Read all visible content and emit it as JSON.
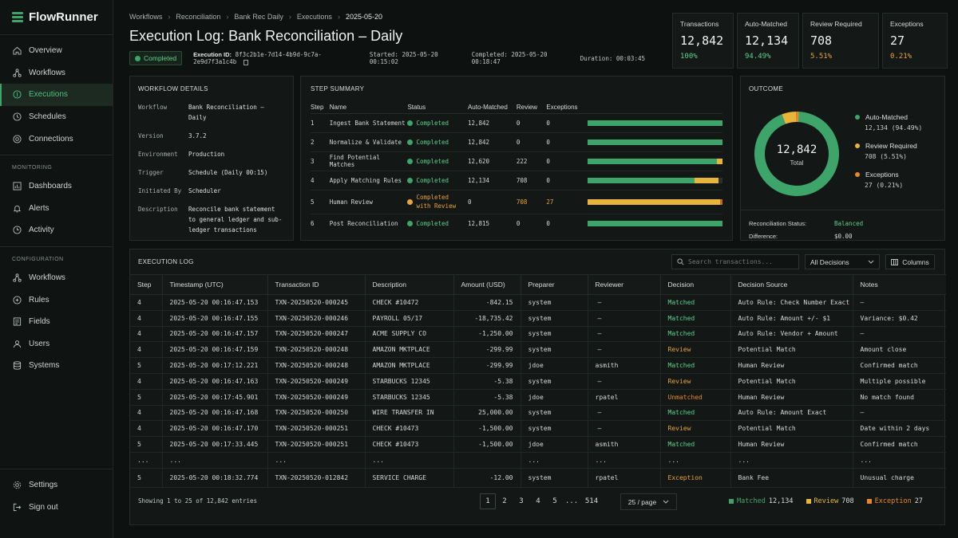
{
  "app": {
    "name": "FlowRunner"
  },
  "nav": {
    "main": [
      {
        "label": "Overview",
        "icon": "home-icon"
      },
      {
        "label": "Workflows",
        "icon": "workflow-icon"
      },
      {
        "label": "Executions",
        "icon": "executions-icon",
        "active": true
      },
      {
        "label": "Schedules",
        "icon": "clock-icon"
      },
      {
        "label": "Connections",
        "icon": "connection-icon"
      }
    ],
    "monitoring_label": "MONITORING",
    "monitoring": [
      {
        "label": "Dashboards",
        "icon": "chart-icon"
      },
      {
        "label": "Alerts",
        "icon": "bell-icon"
      },
      {
        "label": "Activity",
        "icon": "activity-icon"
      }
    ],
    "configuration_label": "CONFIGURATION",
    "configuration": [
      {
        "label": "Workflows",
        "icon": "workflow-icon"
      },
      {
        "label": "Rules",
        "icon": "rules-icon"
      },
      {
        "label": "Fields",
        "icon": "fields-icon"
      },
      {
        "label": "Users",
        "icon": "users-icon"
      },
      {
        "label": "Systems",
        "icon": "database-icon"
      }
    ],
    "bottom": [
      {
        "label": "Settings",
        "icon": "gear-icon"
      },
      {
        "label": "Sign out",
        "icon": "sign-out-icon"
      }
    ]
  },
  "breadcrumb": [
    "Workflows",
    "Reconciliation",
    "Bank Rec Daily",
    "Executions",
    "2025-05-20"
  ],
  "page": {
    "title": "Execution Log: Bank Reconciliation – Daily",
    "status": "Completed",
    "execution_id_label": "Execution ID:",
    "execution_id": "8f3c2b1e-7d14-4b9d-9c7a-2e9d7f3a1c4b",
    "started_label": "Started:",
    "started": "2025-05-20 00:15:02",
    "completed_label": "Completed:",
    "completed": "2025-05-20 00:18:47",
    "duration_label": "Duration:",
    "duration": "00:03:45"
  },
  "stats": [
    {
      "label": "Transactions",
      "value": "12,842",
      "pct": "100%",
      "color": "#5fd08e"
    },
    {
      "label": "Auto-Matched",
      "value": "12,134",
      "pct": "94.49%",
      "color": "#5fd08e"
    },
    {
      "label": "Review Required",
      "value": "708",
      "pct": "5.51%",
      "color": "#e8a33a"
    },
    {
      "label": "Exceptions",
      "value": "27",
      "pct": "0.21%",
      "color": "#e8a33a"
    }
  ],
  "workflow_details": {
    "title": "WORKFLOW DETAILS",
    "rows": [
      {
        "k": "Workflow",
        "v": "Bank Reconciliation – Daily"
      },
      {
        "k": "Version",
        "v": "3.7.2"
      },
      {
        "k": "Environment",
        "v": "Production"
      },
      {
        "k": "Trigger",
        "v": "Schedule (Daily 00:15)"
      },
      {
        "k": "Initiated By",
        "v": "Scheduler"
      },
      {
        "k": "Description",
        "v": "Reconcile bank statement to general ledger and sub-ledger transactions"
      }
    ]
  },
  "step_summary": {
    "title": "STEP SUMMARY",
    "headers": [
      "Step",
      "Name",
      "Status",
      "Auto-Matched",
      "Review",
      "Exceptions"
    ],
    "rows": [
      {
        "step": "1",
        "name": "Ingest Bank Statement",
        "status": "Completed",
        "warn": false,
        "auto": "12,842",
        "review": "0",
        "exc": "0",
        "bar": [
          1.0,
          0,
          0
        ]
      },
      {
        "step": "2",
        "name": "Normalize & Validate",
        "status": "Completed",
        "warn": false,
        "auto": "12,842",
        "review": "0",
        "exc": "0",
        "bar": [
          1.0,
          0,
          0
        ]
      },
      {
        "step": "3",
        "name": "Find Potential Matches",
        "status": "Completed",
        "warn": false,
        "auto": "12,620",
        "review": "222",
        "exc": "0",
        "bar": [
          0.96,
          0.04,
          0
        ]
      },
      {
        "step": "4",
        "name": "Apply Matching Rules",
        "status": "Completed",
        "warn": false,
        "auto": "12,134",
        "review": "708",
        "exc": "0",
        "bar": [
          0.79,
          0.18,
          0
        ]
      },
      {
        "step": "5",
        "name": "Human Review",
        "status": "Completed with Review",
        "warn": true,
        "auto": "0",
        "review": "708",
        "exc": "27",
        "bar": [
          0,
          0.98,
          0.02
        ]
      },
      {
        "step": "6",
        "name": "Post Reconciliation",
        "status": "Completed",
        "warn": false,
        "auto": "12,815",
        "review": "0",
        "exc": "0",
        "bar": [
          1.0,
          0,
          0
        ]
      }
    ]
  },
  "outcome": {
    "title": "OUTCOME",
    "total_value": "12,842",
    "total_label": "Total",
    "legend": [
      {
        "name": "Auto-Matched",
        "value": "12,134 (94.49%)",
        "color": "#3ea56a"
      },
      {
        "name": "Review Required",
        "value": "708 (5.51%)",
        "color": "#e8b53a"
      },
      {
        "name": "Exceptions",
        "value": "27 (0.21%)",
        "color": "#e8862a"
      }
    ],
    "recon_status_label": "Reconciliation Status:",
    "recon_status": "Balanced",
    "difference_label": "Difference:",
    "difference": "$0.00"
  },
  "chart_data": {
    "type": "pie",
    "categories": [
      "Auto-Matched",
      "Review Required",
      "Exceptions"
    ],
    "values": [
      12134,
      708,
      27
    ]
  },
  "execution_log": {
    "title": "EXECUTION LOG",
    "search_placeholder": "Search transactions...",
    "filter": "All Decisions",
    "columns_label": "Columns",
    "headers": [
      "Step",
      "Timestamp (UTC)",
      "Transaction ID",
      "Description",
      "Amount (USD)",
      "Preparer",
      "Reviewer",
      "Decision",
      "Decision Source",
      "Notes"
    ],
    "rows": [
      [
        "4",
        "2025-05-20 00:16:47.153",
        "TXN-20250520-000245",
        "CHECK #10472",
        "-842.15",
        "system",
        "—",
        "Matched",
        "Auto Rule: Check Number Exact",
        "—"
      ],
      [
        "4",
        "2025-05-20 00:16:47.155",
        "TXN-20250520-000246",
        "PAYROLL 05/17",
        "-18,735.42",
        "system",
        "—",
        "Matched",
        "Auto Rule: Amount +/- $1",
        "Variance: $0.42"
      ],
      [
        "4",
        "2025-05-20 00:16:47.157",
        "TXN-20250520-000247",
        "ACME SUPPLY CO",
        "-1,250.00",
        "system",
        "—",
        "Matched",
        "Auto Rule: Vendor + Amount",
        "—"
      ],
      [
        "4",
        "2025-05-20 00:16:47.159",
        "TXN-20250520-000248",
        "AMAZON MKTPLACE",
        "-299.99",
        "system",
        "—",
        "Review",
        "Potential Match",
        "Amount close"
      ],
      [
        "5",
        "2025-05-20 00:17:12.221",
        "TXN-20250520-000248",
        "AMAZON MKTPLACE",
        "-299.99",
        "jdoe",
        "asmith",
        "Matched",
        "Human Review",
        "Confirmed match"
      ],
      [
        "4",
        "2025-05-20 00:16:47.163",
        "TXN-20250520-000249",
        "STARBUCKS 12345",
        "-5.38",
        "system",
        "—",
        "Review",
        "Potential Match",
        "Multiple possible"
      ],
      [
        "5",
        "2025-05-20 00:17:45.901",
        "TXN-20250520-000249",
        "STARBUCKS 12345",
        "-5.38",
        "jdoe",
        "rpatel",
        "Unmatched",
        "Human Review",
        "No match found"
      ],
      [
        "4",
        "2025-05-20 00:16:47.168",
        "TXN-20250520-000250",
        "WIRE TRANSFER IN",
        "25,000.00",
        "system",
        "—",
        "Matched",
        "Auto Rule: Amount Exact",
        "—"
      ],
      [
        "4",
        "2025-05-20 00:16:47.170",
        "TXN-20250520-000251",
        "CHECK #10473",
        "-1,500.00",
        "system",
        "—",
        "Review",
        "Potential Match",
        "Date within 2 days"
      ],
      [
        "5",
        "2025-05-20 00:17:33.445",
        "TXN-20250520-000251",
        "CHECK #10473",
        "-1,500.00",
        "jdoe",
        "asmith",
        "Matched",
        "Human Review",
        "Confirmed match"
      ],
      [
        "...",
        "...",
        "...",
        "...",
        "",
        "...",
        "...",
        "...",
        "...",
        "..."
      ],
      [
        "5",
        "2025-05-20 00:18:32.774",
        "TXN-20250520-012842",
        "SERVICE CHARGE",
        "-12.00",
        "system",
        "rpatel",
        "Exception",
        "Bank Fee",
        "Unusual charge"
      ]
    ],
    "showing": "Showing 1 to 25 of 12,842 entries",
    "pages": [
      "1",
      "2",
      "3",
      "4",
      "5",
      "...",
      "514"
    ],
    "per_page": "25 / page",
    "totals": [
      {
        "label": "Matched",
        "value": "12,134",
        "color": "#3ea56a"
      },
      {
        "label": "Review",
        "value": "708",
        "color": "#e8b53a"
      },
      {
        "label": "Exception",
        "value": "27",
        "color": "#e8862a"
      }
    ]
  },
  "colors": {
    "matched": "#5fd08e",
    "review": "#e8a33a",
    "unmatched": "#e8862a",
    "exception": "#e8a33a"
  }
}
